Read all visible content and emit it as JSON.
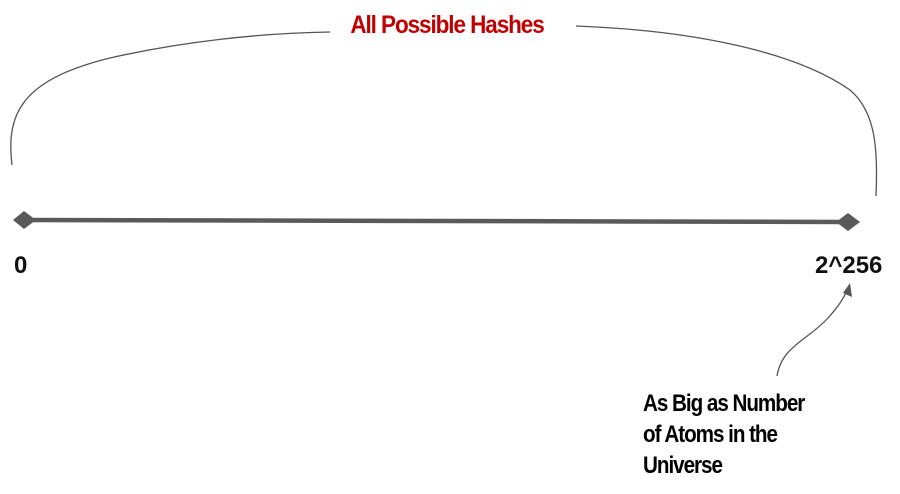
{
  "title": "All Possible Hashes",
  "range": {
    "start_label": "0",
    "end_label": "2^256"
  },
  "annotation": {
    "lines": [
      "As Big as Number",
      "of Atoms in the",
      "Universe"
    ]
  },
  "colors": {
    "title": "#c00000",
    "axis": "#555555",
    "brace": "#555555",
    "text": "#111111"
  }
}
